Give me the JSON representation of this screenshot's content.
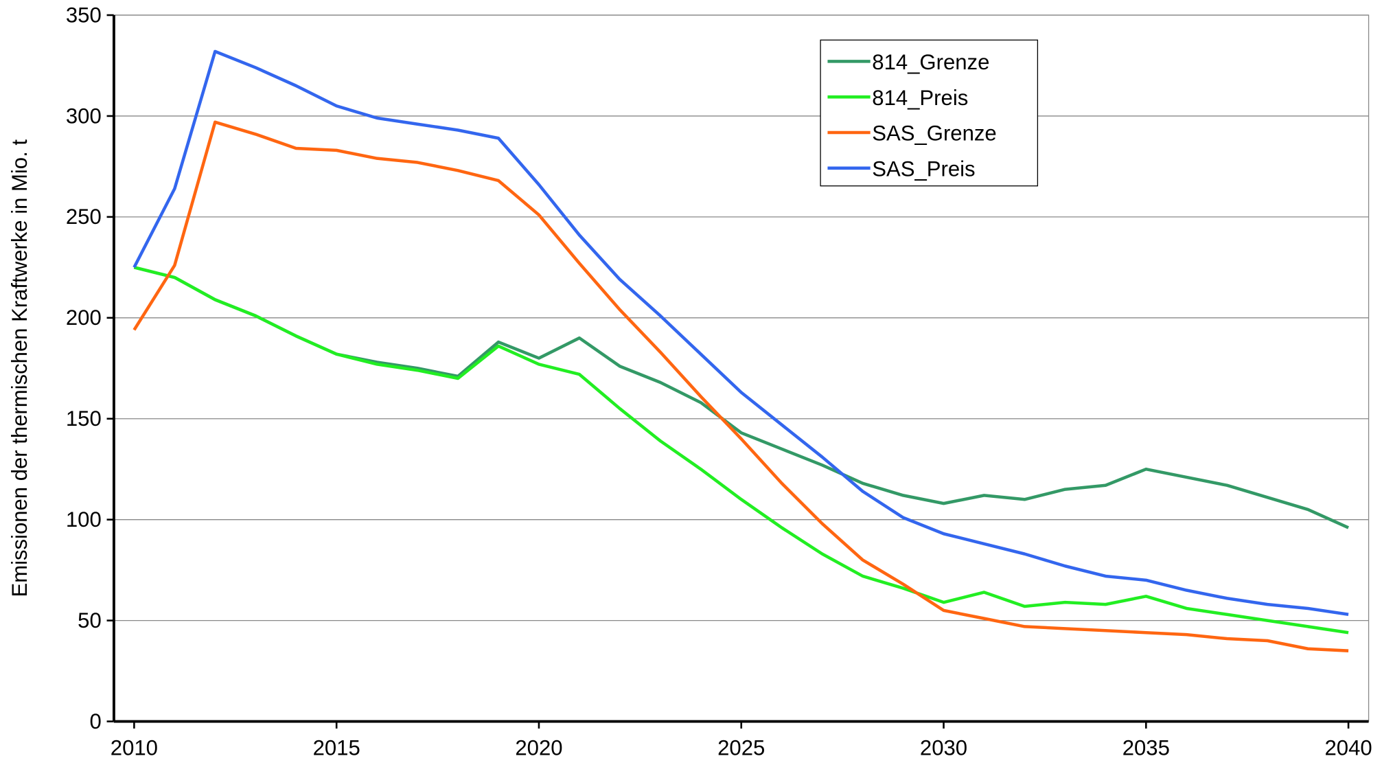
{
  "chart_data": {
    "type": "line",
    "y_label": "Emissionen der thermischen Kraftwerke in Mio. t",
    "x": [
      2010,
      2011,
      2012,
      2013,
      2014,
      2015,
      2016,
      2017,
      2018,
      2019,
      2020,
      2021,
      2022,
      2023,
      2024,
      2025,
      2026,
      2027,
      2028,
      2029,
      2030,
      2031,
      2032,
      2033,
      2034,
      2035,
      2036,
      2037,
      2038,
      2039,
      2040
    ],
    "series": [
      {
        "name": "814_Grenze",
        "color": "#339966",
        "values": [
          225,
          220,
          209,
          201,
          191,
          182,
          178,
          175,
          171,
          188,
          180,
          190,
          176,
          168,
          158,
          143,
          135,
          127,
          118,
          112,
          108,
          112,
          110,
          115,
          117,
          125,
          121,
          117,
          111,
          105,
          96
        ]
      },
      {
        "name": "814_Preis",
        "color": "#22ee22",
        "values": [
          225,
          220,
          209,
          201,
          191,
          182,
          177,
          174,
          170,
          186,
          177,
          172,
          155,
          139,
          125,
          110,
          96,
          83,
          72,
          66,
          59,
          64,
          57,
          59,
          58,
          62,
          56,
          53,
          50,
          47,
          44
        ]
      },
      {
        "name": "SAS_Grenze",
        "color": "#ff6611",
        "values": [
          194,
          226,
          297,
          291,
          284,
          283,
          279,
          277,
          273,
          268,
          251,
          227,
          204,
          183,
          161,
          140,
          118,
          98,
          80,
          68,
          55,
          51,
          47,
          46,
          45,
          44,
          43,
          41,
          40,
          36,
          35
        ]
      },
      {
        "name": "SAS_Preis",
        "color": "#3366ee",
        "values": [
          225,
          264,
          332,
          324,
          315,
          305,
          299,
          296,
          293,
          289,
          266,
          241,
          219,
          201,
          182,
          163,
          147,
          131,
          114,
          101,
          93,
          88,
          83,
          77,
          72,
          70,
          65,
          61,
          58,
          56,
          53
        ]
      }
    ],
    "xlim": [
      2009.5,
      2040.5
    ],
    "xticks": [
      2010,
      2015,
      2020,
      2025,
      2030,
      2035,
      2040
    ],
    "ylim": [
      0,
      350
    ],
    "yticks": [
      0,
      50,
      100,
      150,
      200,
      250,
      300,
      350
    ],
    "grid": true,
    "legend": "top-right"
  }
}
